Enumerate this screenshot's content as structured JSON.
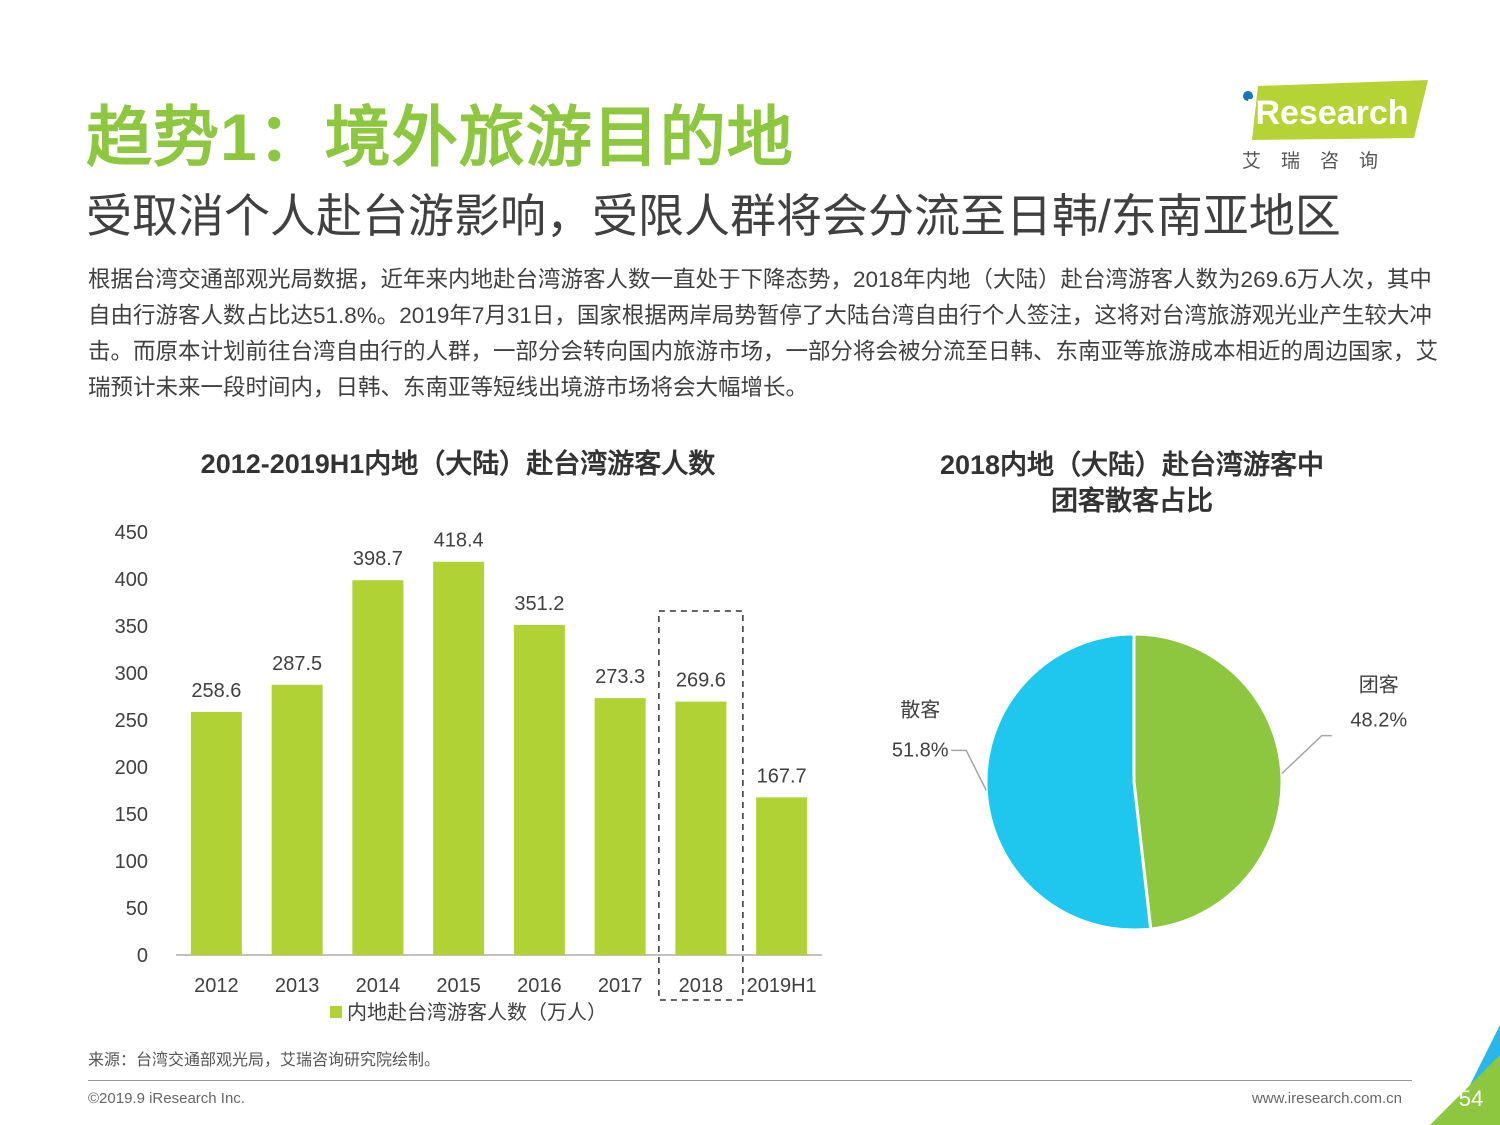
{
  "header": {
    "title": "趋势1：境外旅游目的地",
    "subtitle": "受取消个人赴台游影响，受限人群将会分流至日韩/东南亚地区"
  },
  "logo": {
    "brand": "iResearch",
    "cn": "艾瑞咨询"
  },
  "body": {
    "paragraph": "根据台湾交通部观光局数据，近年来内地赴台湾游客人数一直处于下降态势，2018年内地（大陆）赴台湾游客人数为269.6万人次，其中自由行游客人数占比达51.8%。2019年7月31日，国家根据两岸局势暂停了大陆台湾自由行个人签注，这将对台湾旅游观光业产生较大冲击。而原本计划前往台湾自由行的人群，一部分会转向国内旅游市场，一部分将会被分流至日韩、东南亚等旅游成本相近的周边国家，艾瑞预计未来一段时间内，日韩、东南亚等短线出境游市场将会大幅增长。"
  },
  "chart_data": [
    {
      "type": "bar",
      "title": "2012-2019H1内地（大陆）赴台湾游客人数",
      "categories": [
        "2012",
        "2013",
        "2014",
        "2015",
        "2016",
        "2017",
        "2018",
        "2019H1"
      ],
      "series": [
        {
          "name": "内地赴台湾游客人数（万人）",
          "values": [
            258.6,
            287.5,
            398.7,
            418.4,
            351.2,
            273.3,
            269.6,
            167.7
          ],
          "color": "#b0d235"
        }
      ],
      "data_labels": [
        "258.6",
        "287.5",
        "398.7",
        "418.4",
        "351.2",
        "273.3",
        "269.6",
        "167.7"
      ],
      "ylim": [
        0,
        450
      ],
      "yticks": [
        "0",
        "50",
        "100",
        "150",
        "200",
        "250",
        "300",
        "350",
        "400",
        "450"
      ],
      "highlight_category": "2018",
      "grid": false,
      "legend": "bottom"
    },
    {
      "type": "pie",
      "title": "2018内地（大陆）赴台湾游客中团客散客占比",
      "title_lines": [
        "2018内地（大陆）赴台湾游客中",
        "团客散客占比"
      ],
      "slices": [
        {
          "name": "团客",
          "value": 48.2,
          "label": "48.2%",
          "color": "#8dc63f"
        },
        {
          "name": "散客",
          "value": 51.8,
          "label": "51.8%",
          "color": "#1fc6ee"
        }
      ]
    }
  ],
  "footer": {
    "source": "来源：台湾交通部观光局，艾瑞咨询研究院绘制。",
    "copyright": "©2019.9 iResearch Inc.",
    "website": "www.iresearch.com.cn",
    "page": "54"
  }
}
